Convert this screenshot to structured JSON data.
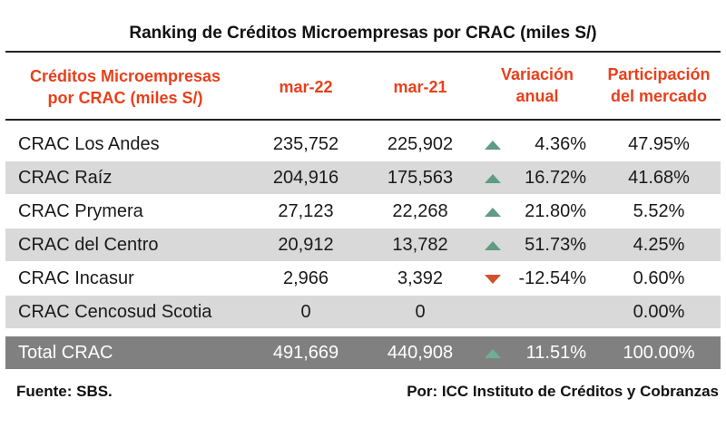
{
  "title": "Ranking de Créditos Microempresas por CRAC (miles S/)",
  "headers": {
    "entity_line1": "Créditos Microempresas",
    "entity_line2": "por CRAC (miles S/)",
    "mar22": "mar-22",
    "mar21": "mar-21",
    "variation_line1": "Variación",
    "variation_line2": "anual",
    "share_line1": "Participación",
    "share_line2": "del mercado"
  },
  "rows": [
    {
      "name": "CRAC Los Andes",
      "mar22": "235,752",
      "mar21": "225,902",
      "trend": "up",
      "variation": "4.36%",
      "share": "47.95%"
    },
    {
      "name": "CRAC Raíz",
      "mar22": "204,916",
      "mar21": "175,563",
      "trend": "up",
      "variation": "16.72%",
      "share": "41.68%"
    },
    {
      "name": "CRAC Prymera",
      "mar22": "27,123",
      "mar21": "22,268",
      "trend": "up",
      "variation": "21.80%",
      "share": "5.52%"
    },
    {
      "name": "CRAC del Centro",
      "mar22": "20,912",
      "mar21": "13,782",
      "trend": "up",
      "variation": "51.73%",
      "share": "4.25%"
    },
    {
      "name": "CRAC Incasur",
      "mar22": "2,966",
      "mar21": "3,392",
      "trend": "down",
      "variation": "-12.54%",
      "share": "0.60%"
    },
    {
      "name": "CRAC Cencosud Scotia",
      "mar22": "0",
      "mar21": "0",
      "trend": "",
      "variation": "",
      "share": "0.00%"
    }
  ],
  "total": {
    "name": "Total CRAC",
    "mar22": "491,669",
    "mar21": "440,908",
    "trend": "up",
    "variation": "11.51%",
    "share": "100.00%"
  },
  "footer": {
    "source": "Fuente: SBS.",
    "credit": "Por: ICC Instituto de Créditos y Cobranzas"
  },
  "colors": {
    "header_text": "#e8401c",
    "up_arrow": "#5f9c82",
    "down_arrow": "#d2512c",
    "shaded_row": "#d9d9d9",
    "total_row": "#808080"
  }
}
